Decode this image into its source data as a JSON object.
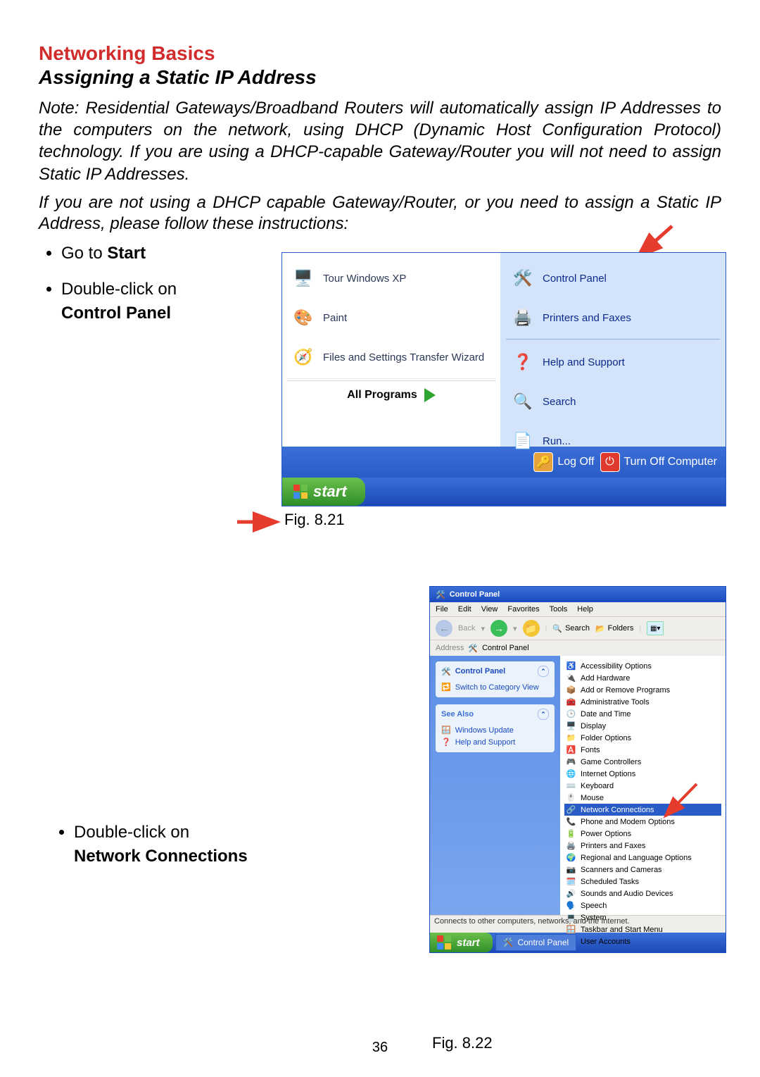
{
  "doc": {
    "heading1": "Networking Basics",
    "heading2": "Assigning a Static IP Address",
    "note1": "Note:    Residential Gateways/Broadband Routers will automatically assign IP Addresses to the computers on the network, using DHCP (Dynamic Host Configuration Protocol) technology.    If you are using a DHCP-capable Gateway/Router you will not need to assign Static IP Addresses.",
    "note2": "If you are not using a DHCP capable Gateway/Router, or you need to assign a Static IP Address, please follow these instructions:",
    "instr1a": "Go to ",
    "instr1b": "Start",
    "instr2a": "Double-click on",
    "instr2b": "Control Panel",
    "instr3a": "Double-click on",
    "instr3b": "Network Connections",
    "page_number": "36",
    "fig1_caption": "Fig. 8.21",
    "fig2_caption": "Fig. 8.22"
  },
  "colors": {
    "xp_blue": "#2a5cc7",
    "xp_blue_light": "#d3e4fa",
    "xp_green": "#2e8f2a",
    "arrow_red": "#e53c2e"
  },
  "start_menu": {
    "left_items": [
      {
        "icon": "🖥️",
        "label": "Tour Windows XP"
      },
      {
        "icon": "🎨",
        "label": "Paint"
      },
      {
        "icon": "🧭",
        "label": "Files and Settings Transfer Wizard"
      }
    ],
    "all_programs": "All Programs",
    "right_items_a": [
      {
        "icon": "🛠️",
        "label": "Control Panel"
      },
      {
        "icon": "🖨️",
        "label": "Printers and Faxes"
      }
    ],
    "right_items_b": [
      {
        "icon": "❓",
        "label": "Help and Support"
      },
      {
        "icon": "🔍",
        "label": "Search"
      },
      {
        "icon": "📄",
        "label": "Run..."
      }
    ],
    "logoff": "Log Off",
    "shutdown": "Turn Off Computer",
    "start_label": "start"
  },
  "control_panel": {
    "title": "Control Panel",
    "menus": [
      "File",
      "Edit",
      "View",
      "Favorites",
      "Tools",
      "Help"
    ],
    "back": "Back",
    "search": "Search",
    "folders": "Folders",
    "address_label": "Address",
    "address_value": "Control Panel",
    "side_panel_head": "Control Panel",
    "side_switch": "Switch to Category View",
    "see_also": "See Also",
    "side_links": [
      {
        "icon": "🪟",
        "label": "Windows Update"
      },
      {
        "icon": "❓",
        "label": "Help and Support"
      }
    ],
    "items": [
      {
        "icon": "♿",
        "label": "Accessibility Options"
      },
      {
        "icon": "🔌",
        "label": "Add Hardware"
      },
      {
        "icon": "📦",
        "label": "Add or Remove Programs"
      },
      {
        "icon": "🧰",
        "label": "Administrative Tools"
      },
      {
        "icon": "🕒",
        "label": "Date and Time"
      },
      {
        "icon": "🖥️",
        "label": "Display"
      },
      {
        "icon": "📁",
        "label": "Folder Options"
      },
      {
        "icon": "🅰️",
        "label": "Fonts"
      },
      {
        "icon": "🎮",
        "label": "Game Controllers"
      },
      {
        "icon": "🌐",
        "label": "Internet Options"
      },
      {
        "icon": "⌨️",
        "label": "Keyboard"
      },
      {
        "icon": "🖱️",
        "label": "Mouse"
      },
      {
        "icon": "🔗",
        "label": "Network Connections"
      },
      {
        "icon": "📞",
        "label": "Phone and Modem Options"
      },
      {
        "icon": "🔋",
        "label": "Power Options"
      },
      {
        "icon": "🖨️",
        "label": "Printers and Faxes"
      },
      {
        "icon": "🌍",
        "label": "Regional and Language Options"
      },
      {
        "icon": "📷",
        "label": "Scanners and Cameras"
      },
      {
        "icon": "🗓️",
        "label": "Scheduled Tasks"
      },
      {
        "icon": "🔊",
        "label": "Sounds and Audio Devices"
      },
      {
        "icon": "🗣️",
        "label": "Speech"
      },
      {
        "icon": "💻",
        "label": "System"
      },
      {
        "icon": "🪟",
        "label": "Taskbar and Start Menu"
      },
      {
        "icon": "👥",
        "label": "User Accounts"
      }
    ],
    "selected_index": 12,
    "status": "Connects to other computers, networks, and the Internet.",
    "task_start": "start",
    "task_item": "Control Panel"
  }
}
